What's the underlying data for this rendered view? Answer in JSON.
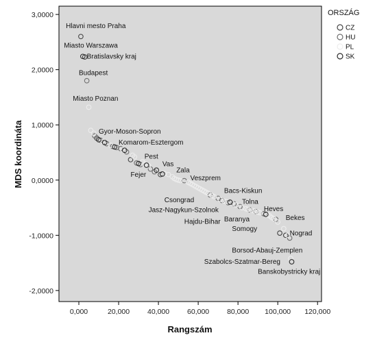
{
  "chart_data": {
    "type": "scatter",
    "xlabel": "Rangszám",
    "ylabel": "MDS koordináta",
    "xlim": [
      -10000,
      122000
    ],
    "ylim": [
      -2200,
      3150
    ],
    "xticks": [
      "0,000",
      "20,000",
      "40,000",
      "60,000",
      "80,000",
      "100,000",
      "120,000"
    ],
    "xtick_values": [
      0,
      20000,
      40000,
      60000,
      80000,
      100000,
      120000
    ],
    "yticks": [
      "3,0000",
      "2,0000",
      "1,0000",
      "0,0000",
      "-1,0000",
      "-2,0000"
    ],
    "ytick_values": [
      3000,
      2000,
      1000,
      0,
      -1000,
      -2000
    ],
    "grid": false,
    "legend": {
      "title": "ORSZÁG",
      "placement": "right",
      "entries": [
        "CZ",
        "HU",
        "PL",
        "SK"
      ]
    },
    "colors": {
      "plot_bg": "#d9d9d9",
      "CZ": "#444444",
      "HU": "#6e6e6e",
      "PL": "#ededed",
      "SK": "#2a2a2a"
    },
    "series": [
      {
        "name": "CZ",
        "points": [
          [
            1000,
            2600
          ],
          [
            3000,
            2230
          ],
          [
            9000,
            760
          ],
          [
            26000,
            370
          ],
          [
            41000,
            100
          ],
          [
            101000,
            -960
          ],
          [
            104000,
            -1000
          ]
        ]
      },
      {
        "name": "HU",
        "points": [
          [
            4000,
            1800
          ],
          [
            8000,
            800
          ],
          [
            11000,
            720
          ],
          [
            14000,
            660
          ],
          [
            17000,
            610
          ],
          [
            19000,
            590
          ],
          [
            21000,
            570
          ],
          [
            24000,
            510
          ],
          [
            29000,
            310
          ],
          [
            31000,
            280
          ],
          [
            36000,
            200
          ],
          [
            38000,
            150
          ],
          [
            53000,
            -10
          ],
          [
            66000,
            -270
          ],
          [
            70000,
            -330
          ],
          [
            72000,
            -370
          ],
          [
            75000,
            -410
          ],
          [
            78000,
            -430
          ],
          [
            81000,
            -480
          ],
          [
            86000,
            -540
          ],
          [
            89000,
            -570
          ],
          [
            93000,
            -610
          ],
          [
            99000,
            -710
          ],
          [
            106000,
            -1050
          ]
        ]
      },
      {
        "name": "PL",
        "points": [
          [
            5000,
            1320
          ],
          [
            6000,
            900
          ],
          [
            7500,
            850
          ],
          [
            12000,
            700
          ],
          [
            16000,
            630
          ],
          [
            22000,
            550
          ],
          [
            27000,
            450
          ],
          [
            28000,
            420
          ],
          [
            32000,
            330
          ],
          [
            33000,
            290
          ],
          [
            35000,
            260
          ],
          [
            43000,
            120
          ],
          [
            45000,
            100
          ],
          [
            47000,
            60
          ],
          [
            48000,
            30
          ],
          [
            49000,
            10
          ],
          [
            50000,
            0
          ],
          [
            51000,
            -10
          ],
          [
            55000,
            -40
          ],
          [
            56000,
            -60
          ],
          [
            57000,
            -80
          ],
          [
            58000,
            -100
          ],
          [
            59000,
            -120
          ],
          [
            60000,
            -140
          ],
          [
            61000,
            -160
          ],
          [
            62000,
            -180
          ],
          [
            63000,
            -200
          ],
          [
            64000,
            -220
          ],
          [
            65000,
            -240
          ],
          [
            67000,
            -280
          ],
          [
            68000,
            -300
          ],
          [
            71000,
            -350
          ],
          [
            73000,
            -380
          ],
          [
            74000,
            -390
          ],
          [
            77000,
            -420
          ],
          [
            79000,
            -450
          ],
          [
            82000,
            -500
          ],
          [
            84000,
            -520
          ],
          [
            85000,
            -530
          ],
          [
            87000,
            -550
          ],
          [
            88000,
            -560
          ],
          [
            90000,
            -580
          ],
          [
            91000,
            -590
          ],
          [
            95000,
            -630
          ],
          [
            96000,
            -650
          ],
          [
            97000,
            -680
          ],
          [
            98000,
            -700
          ],
          [
            100000,
            -760
          ],
          [
            103000,
            -880
          ],
          [
            105000,
            -1000
          ],
          [
            106500,
            -1420
          ]
        ]
      },
      {
        "name": "SK",
        "points": [
          [
            2000,
            2240
          ],
          [
            10000,
            730
          ],
          [
            13000,
            680
          ],
          [
            18000,
            600
          ],
          [
            23000,
            540
          ],
          [
            30000,
            300
          ],
          [
            34000,
            270
          ],
          [
            39000,
            180
          ],
          [
            42000,
            110
          ],
          [
            76000,
            -400
          ],
          [
            94000,
            -620
          ],
          [
            107000,
            -1480
          ]
        ]
      }
    ],
    "annotations": [
      {
        "text": "Hlavni mesto Praha",
        "x": -6500,
        "y": 2750
      },
      {
        "text": "Miasto Warszawa",
        "x": -7500,
        "y": 2400
      },
      {
        "text": "Bratislavsky kraj",
        "x": 4000,
        "y": 2200
      },
      {
        "text": "Budapest",
        "x": 0,
        "y": 1900
      },
      {
        "text": "Miasto Poznan",
        "x": -3000,
        "y": 1440
      },
      {
        "text": "Gyor-Moson-Sopron",
        "x": 10000,
        "y": 840
      },
      {
        "text": "Komarom-Esztergom",
        "x": 20000,
        "y": 640
      },
      {
        "text": "Pest",
        "x": 33000,
        "y": 390
      },
      {
        "text": "Vas",
        "x": 42000,
        "y": 250
      },
      {
        "text": "Zala",
        "x": 49000,
        "y": 140
      },
      {
        "text": "Fejer",
        "x": 26000,
        "y": 60
      },
      {
        "text": "Veszprem",
        "x": 56000,
        "y": 0
      },
      {
        "text": "Bacs-Kiskun",
        "x": 73000,
        "y": -230
      },
      {
        "text": "Csongrad",
        "x": 43000,
        "y": -400
      },
      {
        "text": "Tolna",
        "x": 82000,
        "y": -430
      },
      {
        "text": "Heves",
        "x": 93000,
        "y": -560
      },
      {
        "text": "Jasz-Nagykun-Szolnok",
        "x": 35000,
        "y": -580
      },
      {
        "text": "Bekes",
        "x": 104000,
        "y": -720
      },
      {
        "text": "Baranya",
        "x": 73000,
        "y": -750
      },
      {
        "text": "Hajdu-Bihar",
        "x": 53000,
        "y": -790
      },
      {
        "text": "Somogy",
        "x": 77000,
        "y": -920
      },
      {
        "text": "Nograd",
        "x": 106000,
        "y": -1000
      },
      {
        "text": "Borsod-Abauj-Zemplen",
        "x": 77000,
        "y": -1310
      },
      {
        "text": "Szabolcs-Szatmar-Bereg",
        "x": 63000,
        "y": -1520
      },
      {
        "text": "Banskobystricky kraj",
        "x": 90000,
        "y": -1700
      }
    ]
  }
}
